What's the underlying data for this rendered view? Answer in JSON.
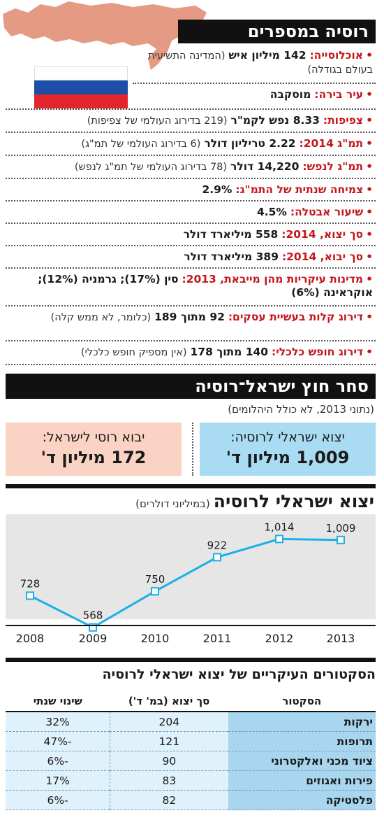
{
  "colors": {
    "accent": "#c4161c",
    "dark": "#111111",
    "blue_box": "#a9dcf3",
    "pink_box": "#fbd3c4",
    "line": "#1ab0e4",
    "map": "#e59a84"
  },
  "header": {
    "title": "רוסיה במספרים"
  },
  "facts": [
    {
      "label": "אוכלוסייה:",
      "value": "142 מיליון איש",
      "note": "(המדינה התשיעית בעולם בגודלה)"
    },
    {
      "label": "עיר בירה:",
      "value": "מוסקבה",
      "note": ""
    },
    {
      "label": "צפיפות:",
      "value": "8.33 נפש לקמ\"ר",
      "note": "(219 בדירוג העולמי של צפיפות)"
    },
    {
      "label": "תמ\"ג 2014:",
      "value": "2.22 טריליון דולר",
      "note": "(6 בדירוג העולמי של תמ\"ג)"
    },
    {
      "label": "תמ\"ג לנפש:",
      "value": "14,220 דולר",
      "note": "(78 בדירוג העולמי של תמ\"ג לנפש)"
    },
    {
      "label": "צמיחה שנתית של התמ\"ג:",
      "value": "2.9%",
      "note": ""
    },
    {
      "label": "שיעור אבטלה:",
      "value": "4.5%",
      "note": ""
    },
    {
      "label": "סך יצוא, 2014:",
      "value": "558 מיליארד דולר",
      "note": ""
    },
    {
      "label": "סך יבוא, 2014:",
      "value": "389 מיליארד דולר",
      "note": ""
    },
    {
      "label": "מדינות עיקריות מהן מייבאת, 2013:",
      "value": "סין (17%); גרמניה (12%); אוקראינה (6%)",
      "note": ""
    },
    {
      "label": "דירוג קלות בעשיית עסקים:",
      "value": "92 מתוך 189",
      "note": "(כלומר, לא ממש קלה)"
    },
    {
      "label": "דירוג חופש כלכלי:",
      "value": "140 מתוך 178",
      "note": "(אין מספיק חופש כלכלי)"
    }
  ],
  "trade": {
    "title": "סחר חוץ ישראל־רוסיה",
    "note": "(נתוני 2013, לא כולל היהלומים)",
    "export_label": "יצוא ישראלי לרוסיה:",
    "export_value": "1,009 מיליון ד'",
    "import_label": "יבוא רוסי לישראל:",
    "import_value": "172 מיליון ד'"
  },
  "chart_data": {
    "type": "line",
    "title": "יצוא ישראלי לרוסיה",
    "subtitle": "(במיליוני דולרים)",
    "x": [
      "2008",
      "2009",
      "2010",
      "2011",
      "2012",
      "2013"
    ],
    "values": [
      728,
      568,
      750,
      922,
      1014,
      1009
    ],
    "data_labels": [
      "728",
      "568",
      "750",
      "922",
      "1,014",
      "1,009"
    ],
    "ylim": [
      500,
      1100
    ],
    "grid": false
  },
  "sectors": {
    "title": "הסקטורים העיקריים של יצוא ישראלי לרוסיה",
    "headers": [
      "הסקטור",
      "סך יצוא (במ' ד')",
      "שינוי שנתי"
    ],
    "rows": [
      {
        "name": "ירקות",
        "total": "204",
        "change": "32%"
      },
      {
        "name": "תרופות",
        "total": "121",
        "change": "-47%"
      },
      {
        "name": "ציוד מכני ואלקטרוני",
        "total": "90",
        "change": "-6%"
      },
      {
        "name": "פירות ואגוזים",
        "total": "83",
        "change": "17%"
      },
      {
        "name": "פלסטיקה",
        "total": "82",
        "change": "-6%"
      }
    ]
  }
}
